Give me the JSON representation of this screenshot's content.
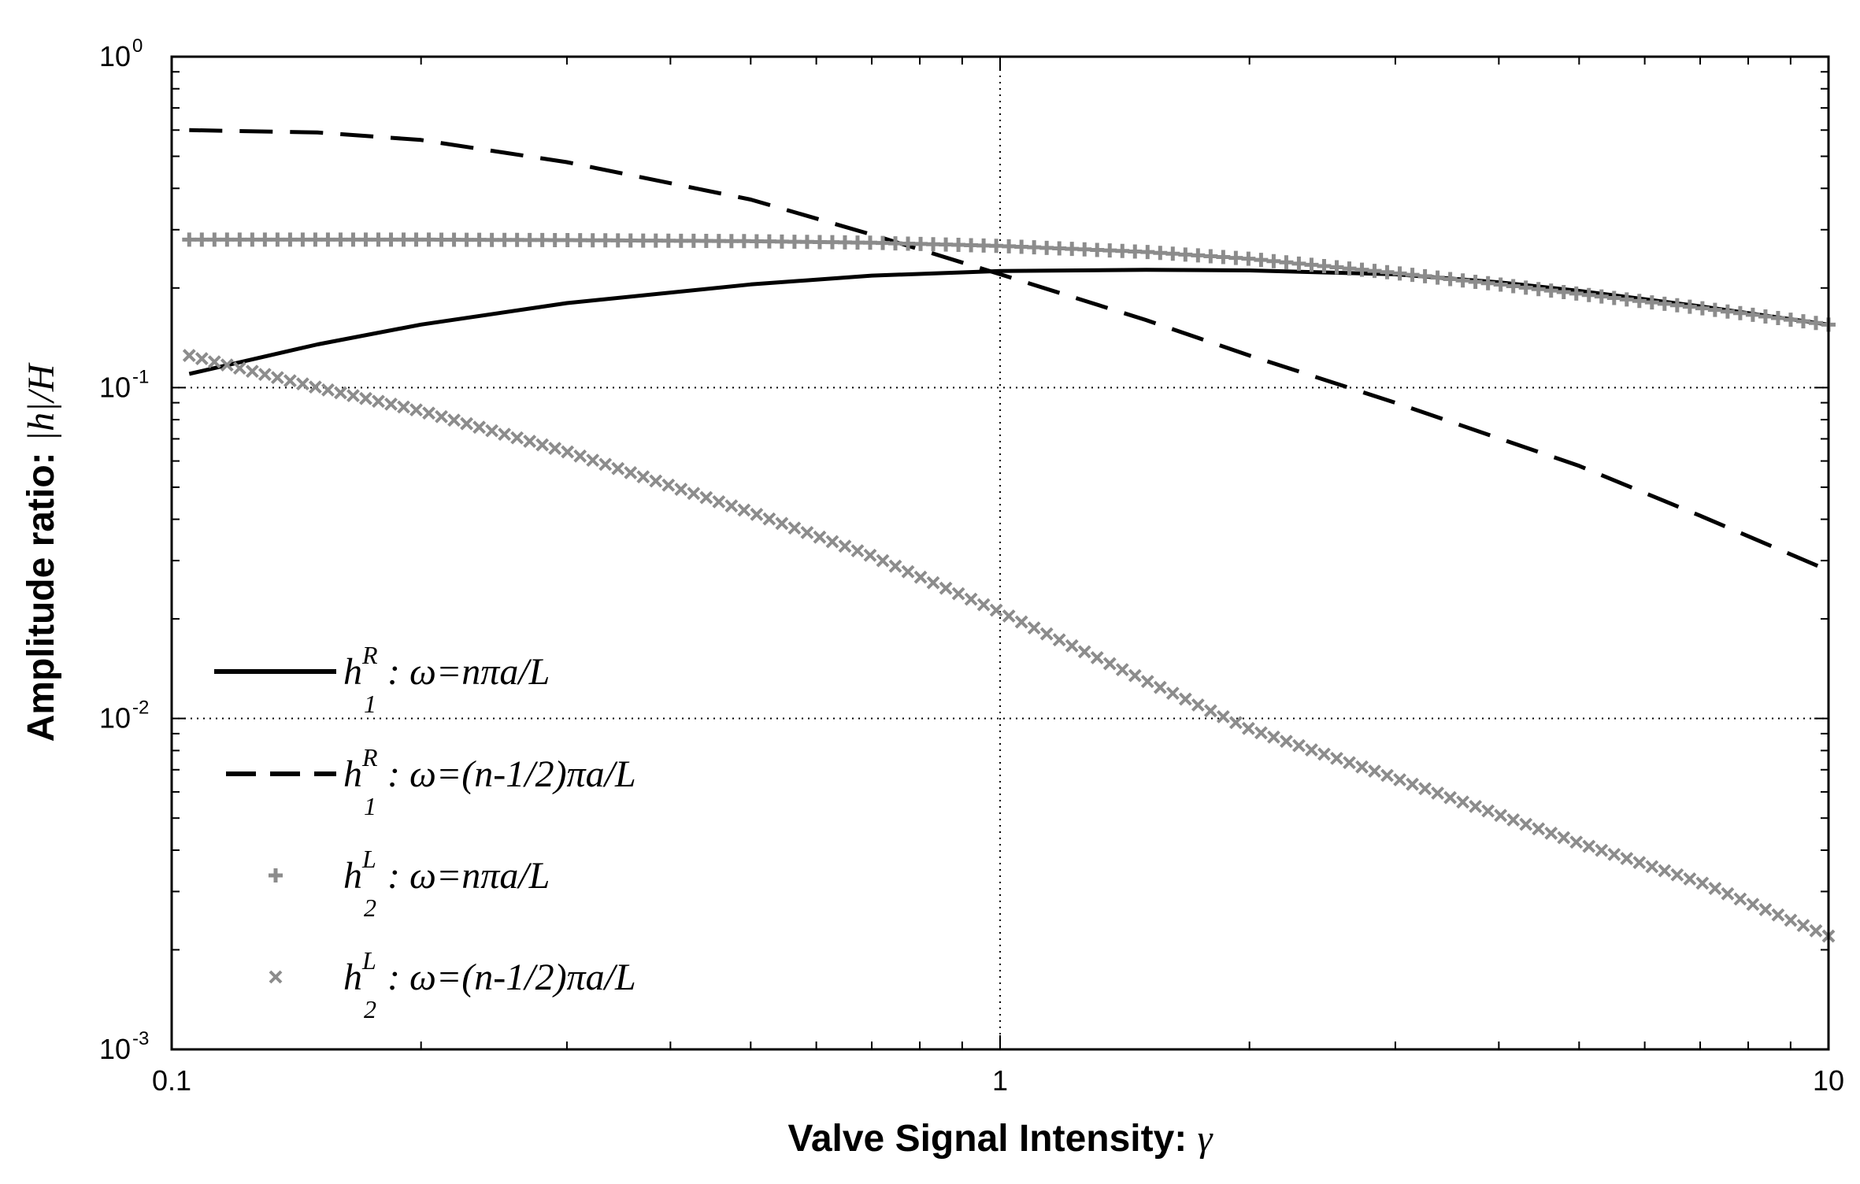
{
  "chart_data": {
    "type": "line",
    "title": "",
    "xlabel_text": "Valve Signal Intensity: ",
    "xlabel_symbol": "γ",
    "ylabel_text": "Amplitude ratio: ",
    "ylabel_symbol": "|h|/H",
    "xscale": "log",
    "yscale": "log",
    "xlim": [
      0.1,
      10
    ],
    "ylim": [
      0.001,
      1
    ],
    "x_ticks": [
      0.1,
      1,
      10
    ],
    "x_tick_labels": [
      "0.1",
      "1",
      "10"
    ],
    "y_ticks": [
      0.001,
      0.01,
      0.1,
      1
    ],
    "y_tick_labels": [
      {
        "base": "10",
        "exp": "-3"
      },
      {
        "base": "10",
        "exp": "-2"
      },
      {
        "base": "10",
        "exp": "-1"
      },
      {
        "base": "10",
        "exp": "0"
      }
    ],
    "grid": "dotted lines at x=1 and at y=0.1, 0.01",
    "legend_position": "lower-left",
    "series": [
      {
        "name": "h1R: ω=nπa/L",
        "label": {
          "sym": "h",
          "sup": "R",
          "sub": "1",
          "eq": ": ω=nπa/L"
        },
        "style": "solid",
        "color": "#000000",
        "x": [
          0.105,
          0.15,
          0.2,
          0.3,
          0.5,
          0.7,
          1.0,
          1.5,
          2.0,
          3.0,
          4.0,
          5.0,
          7.0,
          10.0
        ],
        "y": [
          0.11,
          0.135,
          0.155,
          0.18,
          0.205,
          0.218,
          0.225,
          0.227,
          0.226,
          0.22,
          0.208,
          0.196,
          0.176,
          0.155
        ]
      },
      {
        "name": "h1R: ω=(n-1/2)πa/L",
        "label": {
          "sym": "h",
          "sup": "R",
          "sub": "1",
          "eq": ": ω=(n-1/2)πa/L"
        },
        "style": "dashed",
        "color": "#000000",
        "x": [
          0.105,
          0.15,
          0.2,
          0.3,
          0.5,
          0.7,
          1.0,
          1.5,
          2.0,
          3.0,
          5.0,
          7.0,
          10.0
        ],
        "y": [
          0.6,
          0.59,
          0.56,
          0.48,
          0.37,
          0.29,
          0.22,
          0.16,
          0.125,
          0.09,
          0.058,
          0.041,
          0.028
        ]
      },
      {
        "name": "h2L: ω=nπa/L",
        "label": {
          "sym": "h",
          "sup": "L",
          "sub": "2",
          "eq": ": ω=nπa/L"
        },
        "style": "plus-markers",
        "color": "#8c8c8c",
        "x": [
          0.105,
          0.2,
          0.3,
          0.5,
          0.7,
          1.0,
          1.5,
          2.0,
          3.0,
          4.0,
          5.0,
          7.0,
          10.0
        ],
        "y": [
          0.28,
          0.28,
          0.279,
          0.277,
          0.274,
          0.268,
          0.257,
          0.245,
          0.222,
          0.205,
          0.192,
          0.174,
          0.155
        ]
      },
      {
        "name": "h2L: ω=(n-1/2)πa/L",
        "label": {
          "sym": "h",
          "sup": "L",
          "sub": "2",
          "eq": ": ω=(n-1/2)πa/L"
        },
        "style": "x-markers",
        "color": "#8c8c8c",
        "x": [
          0.105,
          0.15,
          0.2,
          0.3,
          0.5,
          0.7,
          1.0,
          1.5,
          2.0,
          3.0,
          5.0,
          7.0,
          10.0
        ],
        "y": [
          0.125,
          0.1,
          0.085,
          0.064,
          0.042,
          0.031,
          0.021,
          0.013,
          0.0093,
          0.0066,
          0.0042,
          0.0032,
          0.0022
        ]
      }
    ]
  }
}
